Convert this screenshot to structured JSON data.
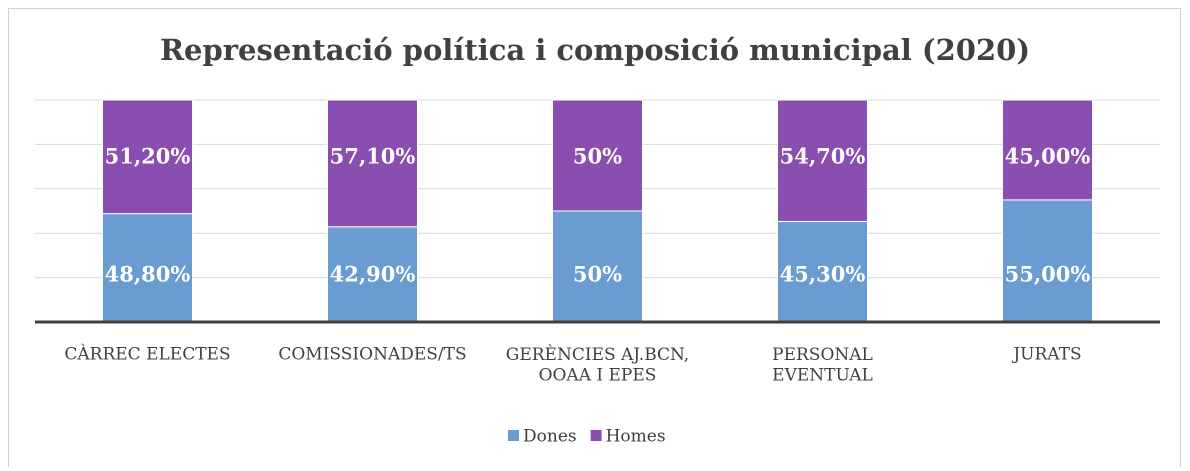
{
  "chart_data": {
    "type": "stacked_bar",
    "title": "Representació política i composició municipal (2020)",
    "categories": [
      "CÀRREC ELECTES",
      "COMISSIONADES/TS",
      "GERÈNCIES AJ.BCN,\nOOAA I EPES",
      "PERSONAL\nEVENTUAL",
      "JURATS"
    ],
    "series": [
      {
        "name": "Dones",
        "color": "#6a9bd1",
        "values": [
          48.8,
          42.9,
          50,
          45.3,
          55
        ],
        "value_labels": [
          "48,80%",
          "42,90%",
          "50%",
          "45,30%",
          "55,00%"
        ]
      },
      {
        "name": "Homes",
        "color": "#8a4eb0",
        "values": [
          51.2,
          57.1,
          50,
          54.7,
          45
        ],
        "value_labels": [
          "51,20%",
          "57,10%",
          "50%",
          "54,70%",
          "45,00%"
        ]
      }
    ],
    "ylim": [
      0,
      100
    ],
    "yticks": [
      0,
      20,
      40,
      60,
      80,
      100
    ],
    "grid": true,
    "legend": "bottom"
  }
}
